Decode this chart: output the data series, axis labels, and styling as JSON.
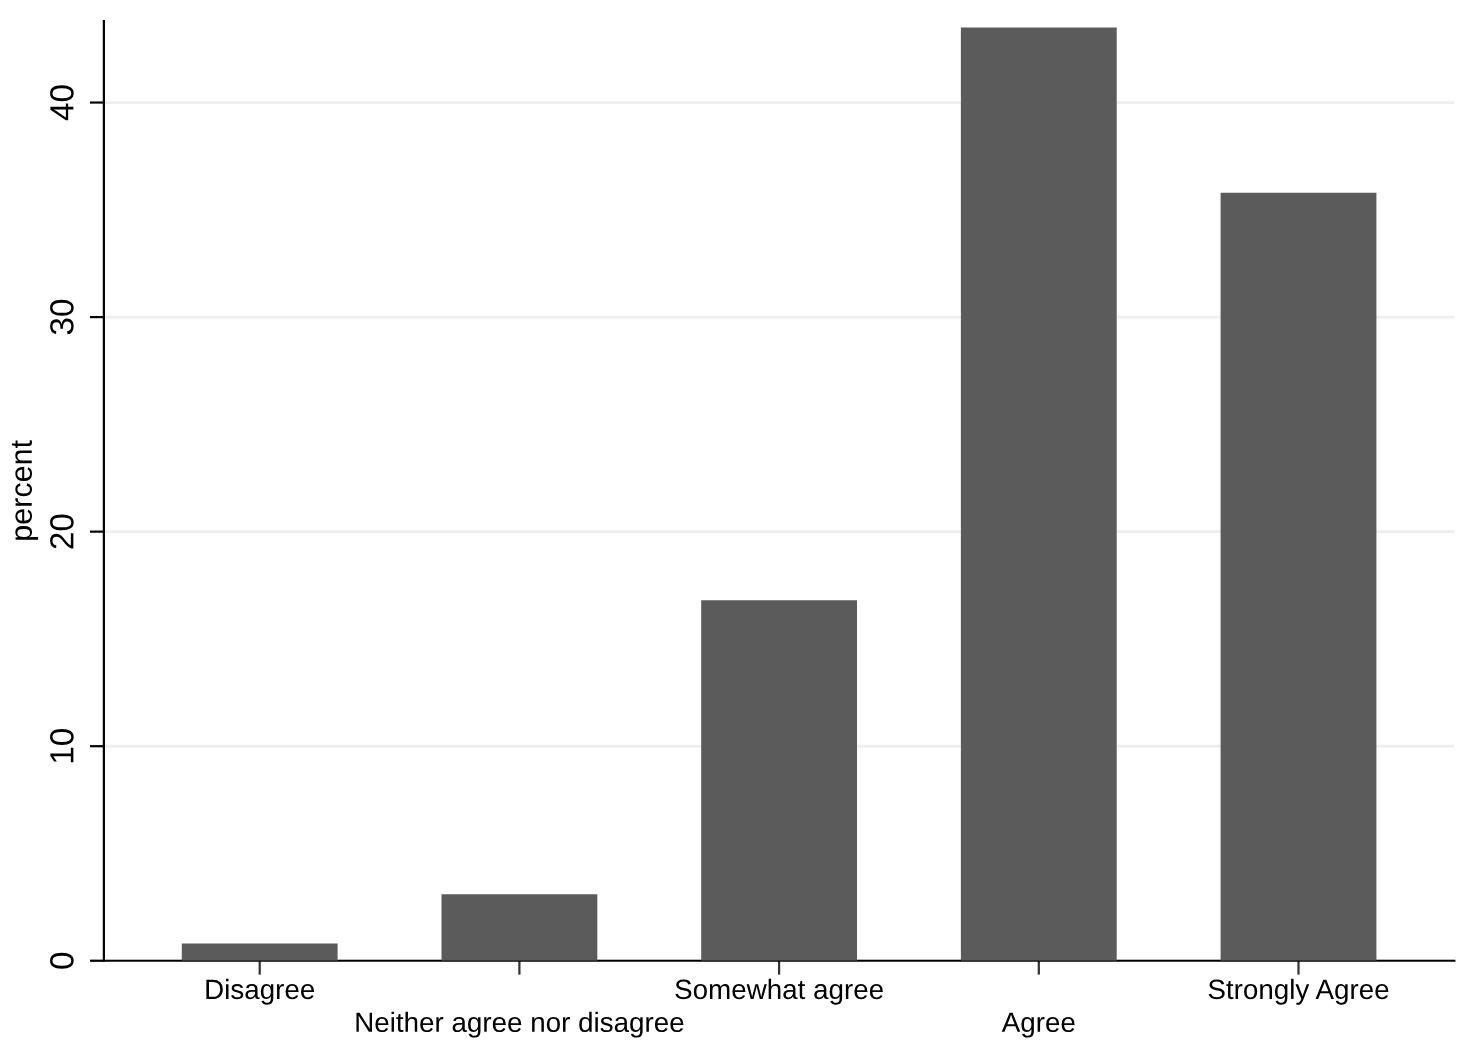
{
  "chart_data": {
    "type": "bar",
    "ylabel": "percent",
    "categories": [
      "Disagree",
      "Neither agree nor disagree",
      "Somewhat agree",
      "Agree",
      "Strongly Agree"
    ],
    "values": [
      0.8,
      3.1,
      16.8,
      43.5,
      35.8
    ],
    "color": "#5b5b5b",
    "ylim": [
      0,
      43.8
    ],
    "yticks": [
      0,
      10,
      20,
      30,
      40
    ],
    "grid": "y"
  }
}
